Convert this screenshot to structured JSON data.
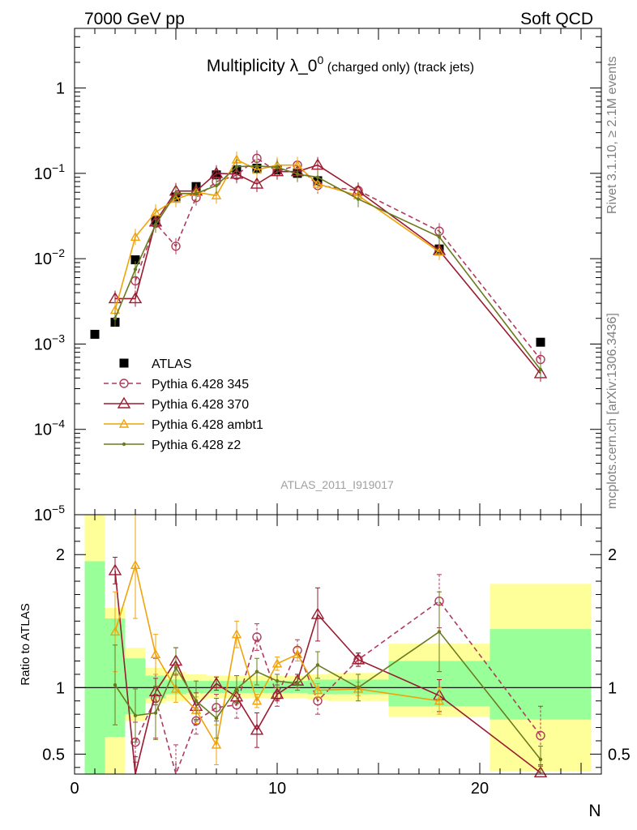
{
  "header": {
    "left_label": "7000 GeV pp",
    "right_label": "Soft QCD"
  },
  "side_labels": {
    "rivet": "Rivet 3.1.10, ≥ 2.1M events",
    "mcplots": "mcplots.cern.ch [arXiv:1306.3436]"
  },
  "chart_data": [
    {
      "type": "line",
      "title": "Multiplicity λ_0",
      "title_superscript": "0",
      "title_suffix": " (charged only) (track jets)",
      "analysis_label": "ATLAS_2011_I919017",
      "xlim": [
        0,
        26
      ],
      "ylim": [
        1e-05,
        5
      ],
      "y_scale": "log",
      "y_ticks": [
        {
          "v": 1,
          "base": "1",
          "exp": ""
        },
        {
          "v": 0.1,
          "base": "10",
          "exp": "−1"
        },
        {
          "v": 0.01,
          "base": "10",
          "exp": "−2"
        },
        {
          "v": 0.001,
          "base": "10",
          "exp": "−3"
        },
        {
          "v": 0.0001,
          "base": "10",
          "exp": "−4"
        },
        {
          "v": 1e-05,
          "base": "10",
          "exp": "−5"
        }
      ],
      "legend_position": "lower-left",
      "series": [
        {
          "name": "ATLAS",
          "color": "#000000",
          "marker": "square",
          "dash": "",
          "points": [
            {
              "x": 1,
              "y": 0.0013
            },
            {
              "x": 2,
              "y": 0.0018
            },
            {
              "x": 3,
              "y": 0.0097
            },
            {
              "x": 4,
              "y": 0.028
            },
            {
              "x": 5,
              "y": 0.053
            },
            {
              "x": 6,
              "y": 0.07
            },
            {
              "x": 7,
              "y": 0.096
            },
            {
              "x": 8,
              "y": 0.11
            },
            {
              "x": 9,
              "y": 0.115
            },
            {
              "x": 10,
              "y": 0.11
            },
            {
              "x": 11,
              "y": 0.1
            },
            {
              "x": 12,
              "y": 0.082
            },
            {
              "x": 18,
              "y": 0.013
            },
            {
              "x": 23,
              "y": 0.00105
            }
          ]
        },
        {
          "name": "Pythia 6.428 345",
          "color": "#b03a5b",
          "marker": "circle",
          "dash": "6,4",
          "points": [
            {
              "x": 3,
              "y": 0.0055
            },
            {
              "x": 4,
              "y": 0.026
            },
            {
              "x": 5,
              "y": 0.014
            },
            {
              "x": 6,
              "y": 0.052
            },
            {
              "x": 7,
              "y": 0.08
            },
            {
              "x": 8,
              "y": 0.095
            },
            {
              "x": 9,
              "y": 0.15
            },
            {
              "x": 10,
              "y": 0.105
            },
            {
              "x": 11,
              "y": 0.125
            },
            {
              "x": 12,
              "y": 0.072
            },
            {
              "x": 14,
              "y": 0.063
            },
            {
              "x": 18,
              "y": 0.021
            },
            {
              "x": 23,
              "y": 0.00066
            }
          ]
        },
        {
          "name": "Pythia 6.428 370",
          "color": "#9b1b30",
          "marker": "triangle",
          "dash": "",
          "points": [
            {
              "x": 2,
              "y": 0.0034
            },
            {
              "x": 3,
              "y": 0.0034
            },
            {
              "x": 4,
              "y": 0.027
            },
            {
              "x": 5,
              "y": 0.062
            },
            {
              "x": 6,
              "y": 0.062
            },
            {
              "x": 7,
              "y": 0.1
            },
            {
              "x": 8,
              "y": 0.098
            },
            {
              "x": 9,
              "y": 0.075
            },
            {
              "x": 10,
              "y": 0.105
            },
            {
              "x": 11,
              "y": 0.105
            },
            {
              "x": 12,
              "y": 0.125
            },
            {
              "x": 14,
              "y": 0.062
            },
            {
              "x": 18,
              "y": 0.0125
            },
            {
              "x": 23,
              "y": 0.00045
            }
          ]
        },
        {
          "name": "Pythia 6.428 ambt1",
          "color": "#f0a30a",
          "marker": "triangle-small",
          "dash": "",
          "points": [
            {
              "x": 2,
              "y": 0.0025
            },
            {
              "x": 3,
              "y": 0.018
            },
            {
              "x": 4,
              "y": 0.035
            },
            {
              "x": 5,
              "y": 0.05
            },
            {
              "x": 6,
              "y": 0.06
            },
            {
              "x": 7,
              "y": 0.055
            },
            {
              "x": 8,
              "y": 0.145
            },
            {
              "x": 9,
              "y": 0.11
            },
            {
              "x": 10,
              "y": 0.125
            },
            {
              "x": 11,
              "y": 0.125
            },
            {
              "x": 12,
              "y": 0.075
            },
            {
              "x": 14,
              "y": 0.055
            },
            {
              "x": 18,
              "y": 0.012
            }
          ]
        },
        {
          "name": "Pythia 6.428 z2",
          "color": "#6b7a1e",
          "marker": "dot",
          "dash": "",
          "points": [
            {
              "x": 2,
              "y": 0.002
            },
            {
              "x": 3,
              "y": 0.0075
            },
            {
              "x": 4,
              "y": 0.025
            },
            {
              "x": 5,
              "y": 0.058
            },
            {
              "x": 6,
              "y": 0.058
            },
            {
              "x": 7,
              "y": 0.072
            },
            {
              "x": 8,
              "y": 0.12
            },
            {
              "x": 9,
              "y": 0.122
            },
            {
              "x": 10,
              "y": 0.118
            },
            {
              "x": 11,
              "y": 0.098
            },
            {
              "x": 12,
              "y": 0.09
            },
            {
              "x": 14,
              "y": 0.05
            },
            {
              "x": 18,
              "y": 0.018
            },
            {
              "x": 23,
              "y": 0.0005
            }
          ]
        }
      ]
    },
    {
      "type": "line",
      "ylabel": "Ratio to ATLAS",
      "xlabel": "N",
      "xlim": [
        0,
        26
      ],
      "ylim": [
        0.35,
        2.3
      ],
      "x_ticks": [
        0,
        10,
        20
      ],
      "y_ticks": [
        {
          "v": 2,
          "label": "2"
        },
        {
          "v": 1,
          "label": "1"
        },
        {
          "v": 0.5,
          "label": "0.5"
        }
      ],
      "reference_line": 1,
      "bands": [
        {
          "x0": 0.5,
          "x1": 1.5,
          "yellow": [
            0.35,
            2.3
          ],
          "green": [
            0.35,
            1.95
          ]
        },
        {
          "x0": 1.5,
          "x1": 2.5,
          "yellow": [
            0.35,
            1.6
          ],
          "green": [
            0.63,
            1.52
          ]
        },
        {
          "x0": 2.5,
          "x1": 3.5,
          "yellow": [
            0.75,
            1.3
          ],
          "green": [
            0.8,
            1.22
          ]
        },
        {
          "x0": 3.5,
          "x1": 4.5,
          "yellow": [
            0.88,
            1.15
          ],
          "green": [
            0.92,
            1.09
          ]
        },
        {
          "x0": 4.5,
          "x1": 5.5,
          "yellow": [
            0.9,
            1.12
          ],
          "green": [
            0.95,
            1.06
          ]
        },
        {
          "x0": 5.5,
          "x1": 6.5,
          "yellow": [
            0.91,
            1.1
          ],
          "green": [
            0.96,
            1.05
          ]
        },
        {
          "x0": 6.5,
          "x1": 7.5,
          "yellow": [
            0.92,
            1.09
          ],
          "green": [
            0.96,
            1.05
          ]
        },
        {
          "x0": 7.5,
          "x1": 8.5,
          "yellow": [
            0.92,
            1.09
          ],
          "green": [
            0.96,
            1.05
          ]
        },
        {
          "x0": 8.5,
          "x1": 9.5,
          "yellow": [
            0.92,
            1.09
          ],
          "green": [
            0.96,
            1.05
          ]
        },
        {
          "x0": 9.5,
          "x1": 10.5,
          "yellow": [
            0.92,
            1.09
          ],
          "green": [
            0.96,
            1.05
          ]
        },
        {
          "x0": 10.5,
          "x1": 11.5,
          "yellow": [
            0.92,
            1.09
          ],
          "green": [
            0.96,
            1.05
          ]
        },
        {
          "x0": 11.5,
          "x1": 12.5,
          "yellow": [
            0.91,
            1.1
          ],
          "green": [
            0.95,
            1.06
          ]
        },
        {
          "x0": 12.5,
          "x1": 15.5,
          "yellow": [
            0.9,
            1.11
          ],
          "green": [
            0.95,
            1.06
          ]
        },
        {
          "x0": 15.5,
          "x1": 20.5,
          "yellow": [
            0.78,
            1.33
          ],
          "green": [
            0.86,
            1.2
          ]
        },
        {
          "x0": 20.5,
          "x1": 25.5,
          "yellow": [
            0.37,
            1.78
          ],
          "green": [
            0.76,
            1.44
          ]
        }
      ],
      "series": [
        {
          "name": "Pythia 6.428 345",
          "color": "#b03a5b",
          "marker": "circle",
          "dash": "6,4",
          "points": [
            {
              "x": 3,
              "y": 0.59,
              "err": 0.15
            },
            {
              "x": 4,
              "y": 0.92,
              "err": 0.3
            },
            {
              "x": 5,
              "y": 0.27,
              "err": 0.3
            },
            {
              "x": 6,
              "y": 0.75,
              "err": 0.1
            },
            {
              "x": 7,
              "y": 0.85,
              "err": 0.1
            },
            {
              "x": 8,
              "y": 0.87,
              "err": 0.1
            },
            {
              "x": 9,
              "y": 1.38,
              "err": 0.1
            },
            {
              "x": 10,
              "y": 0.94,
              "err": 0.08
            },
            {
              "x": 11,
              "y": 1.28,
              "err": 0.08
            },
            {
              "x": 12,
              "y": 0.9,
              "err": 0.1
            },
            {
              "x": 14,
              "y": 1.21,
              "err": 0.05
            },
            {
              "x": 18,
              "y": 1.65,
              "err": 0.2
            },
            {
              "x": 23,
              "y": 0.64,
              "err": 0.22
            }
          ]
        },
        {
          "name": "Pythia 6.428 370",
          "color": "#9b1b30",
          "marker": "triangle",
          "dash": "",
          "points": [
            {
              "x": 2,
              "y": 1.88,
              "err": 0.1
            },
            {
              "x": 3,
              "y": 0.33,
              "err": 0.15
            },
            {
              "x": 4,
              "y": 0.97,
              "err": 0.1
            },
            {
              "x": 5,
              "y": 1.2,
              "err": 0.1
            },
            {
              "x": 6,
              "y": 0.86,
              "err": 0.1
            },
            {
              "x": 7,
              "y": 1.03,
              "err": 0.05
            },
            {
              "x": 8,
              "y": 0.93,
              "err": 0.05
            },
            {
              "x": 9,
              "y": 0.68,
              "err": 0.13
            },
            {
              "x": 10,
              "y": 0.95,
              "err": 0.05
            },
            {
              "x": 11,
              "y": 1.05,
              "err": 0.05
            },
            {
              "x": 12,
              "y": 1.55,
              "err": 0.2
            },
            {
              "x": 14,
              "y": 1.21,
              "err": 0.05
            },
            {
              "x": 18,
              "y": 0.94,
              "err": 0.12
            },
            {
              "x": 23,
              "y": 0.36,
              "err": 0.05
            }
          ]
        },
        {
          "name": "Pythia 6.428 ambt1",
          "color": "#f0a30a",
          "marker": "triangle-small",
          "dash": "",
          "points": [
            {
              "x": 2,
              "y": 1.42,
              "err": 0.3
            },
            {
              "x": 3,
              "y": 1.92,
              "err": 0.4
            },
            {
              "x": 4,
              "y": 1.25,
              "err": 0.15
            },
            {
              "x": 5,
              "y": 0.99,
              "err": 0.1
            },
            {
              "x": 6,
              "y": 0.83,
              "err": 0.1
            },
            {
              "x": 7,
              "y": 0.57,
              "err": 0.15
            },
            {
              "x": 8,
              "y": 1.4,
              "err": 0.1
            },
            {
              "x": 9,
              "y": 0.9,
              "err": 0.05
            },
            {
              "x": 10,
              "y": 1.18,
              "err": 0.05
            },
            {
              "x": 11,
              "y": 1.25,
              "err": 0.05
            },
            {
              "x": 12,
              "y": 0.98,
              "err": 0.05
            },
            {
              "x": 14,
              "y": 0.99,
              "err": 0.05
            },
            {
              "x": 18,
              "y": 0.9,
              "err": 0.1
            }
          ]
        },
        {
          "name": "Pythia 6.428 z2",
          "color": "#6b7a1e",
          "marker": "dot",
          "dash": "",
          "points": [
            {
              "x": 2,
              "y": 1.02,
              "err": 0.3
            },
            {
              "x": 3,
              "y": 0.79,
              "err": 0.2
            },
            {
              "x": 4,
              "y": 0.81,
              "err": 0.2
            },
            {
              "x": 5,
              "y": 1.15,
              "err": 0.15
            },
            {
              "x": 6,
              "y": 0.9,
              "err": 0.15
            },
            {
              "x": 7,
              "y": 0.77,
              "err": 0.15
            },
            {
              "x": 8,
              "y": 0.99,
              "err": 0.1
            },
            {
              "x": 9,
              "y": 1.12,
              "err": 0.1
            },
            {
              "x": 10,
              "y": 1.05,
              "err": 0.05
            },
            {
              "x": 11,
              "y": 1.03,
              "err": 0.05
            },
            {
              "x": 12,
              "y": 1.17,
              "err": 0.1
            },
            {
              "x": 14,
              "y": 1.0,
              "err": 0.1
            },
            {
              "x": 18,
              "y": 1.42,
              "err": 0.3
            },
            {
              "x": 23,
              "y": 0.46,
              "err": 0.1
            }
          ]
        }
      ]
    }
  ]
}
